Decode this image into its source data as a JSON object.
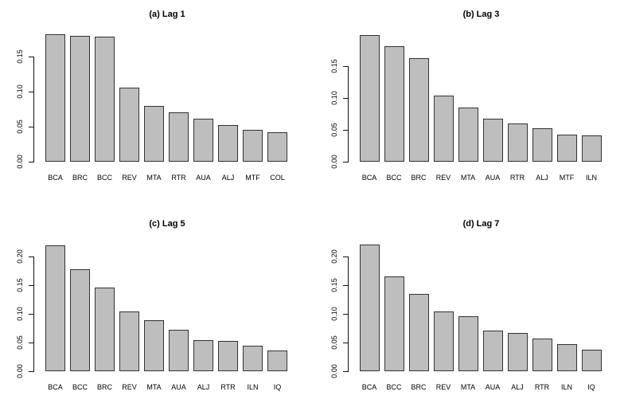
{
  "page": {
    "background": "#ffffff",
    "description": "2x2 grid of sorted bar charts of variable importance at different lags"
  },
  "style": {
    "bar_fill": "#bebebe",
    "bar_border": "#333333",
    "axis_color": "#111111",
    "text_color": "#000000"
  },
  "chart_data": [
    {
      "id": "a",
      "type": "bar",
      "title": "(a) Lag 1",
      "categories": [
        "BCA",
        "BRC",
        "BCC",
        "REV",
        "MTA",
        "RTR",
        "AUA",
        "ALJ",
        "MTF",
        "COL"
      ],
      "values": [
        0.182,
        0.18,
        0.178,
        0.106,
        0.08,
        0.071,
        0.061,
        0.052,
        0.045,
        0.042
      ],
      "xlabel": "",
      "ylabel": "",
      "ylim": [
        0,
        0.191
      ],
      "yticks": [
        0,
        0.05,
        0.1,
        0.15
      ],
      "ytick_labels": [
        "0.00",
        "0.05",
        "0.10",
        "0.15"
      ],
      "grid": false,
      "legend": false
    },
    {
      "id": "b",
      "type": "bar",
      "title": "(b) Lag 3",
      "categories": [
        "BCA",
        "BCC",
        "BRC",
        "REV",
        "MTA",
        "AUA",
        "RTR",
        "ALJ",
        "MTF",
        "ILN"
      ],
      "values": [
        0.199,
        0.181,
        0.163,
        0.104,
        0.085,
        0.068,
        0.06,
        0.052,
        0.042,
        0.041
      ],
      "xlabel": "",
      "ylabel": "",
      "ylim": [
        0,
        0.21
      ],
      "yticks": [
        0,
        0.05,
        0.1,
        0.15
      ],
      "ytick_labels": [
        "0.00",
        "0.05",
        "0.10",
        "0.15"
      ],
      "grid": false,
      "legend": false
    },
    {
      "id": "c",
      "type": "bar",
      "title": "(c) Lag 5",
      "categories": [
        "BCA",
        "BCC",
        "BRC",
        "REV",
        "MTA",
        "AUA",
        "ALJ",
        "RTR",
        "ILN",
        "IQ"
      ],
      "values": [
        0.219,
        0.178,
        0.146,
        0.104,
        0.089,
        0.072,
        0.054,
        0.053,
        0.045,
        0.036
      ],
      "xlabel": "",
      "ylabel": "",
      "ylim": [
        0,
        0.233
      ],
      "yticks": [
        0,
        0.05,
        0.1,
        0.15,
        0.2
      ],
      "ytick_labels": [
        "0.00",
        "0.05",
        "0.10",
        "0.15",
        "0.20"
      ],
      "grid": false,
      "legend": false
    },
    {
      "id": "d",
      "type": "bar",
      "title": "(d) Lag 7",
      "categories": [
        "BCA",
        "BCC",
        "BRC",
        "REV",
        "MTA",
        "AUA",
        "ALJ",
        "RTR",
        "ILN",
        "IQ"
      ],
      "values": [
        0.22,
        0.165,
        0.134,
        0.104,
        0.096,
        0.071,
        0.066,
        0.057,
        0.047,
        0.038
      ],
      "xlabel": "",
      "ylabel": "",
      "ylim": [
        0,
        0.233
      ],
      "yticks": [
        0,
        0.05,
        0.1,
        0.15,
        0.2
      ],
      "ytick_labels": [
        "0.00",
        "0.05",
        "0.10",
        "0.15",
        "0.20"
      ],
      "grid": false,
      "legend": false
    }
  ]
}
